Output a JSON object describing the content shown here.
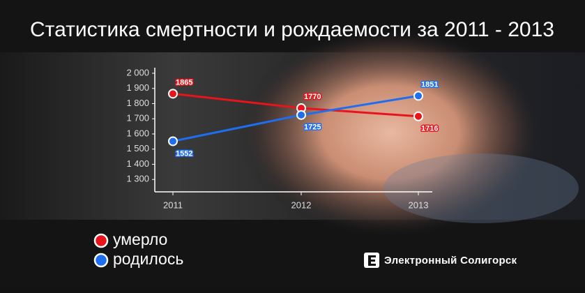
{
  "chart_data": {
    "type": "line",
    "title": "Статистика смертности и рождаемости за 2011 - 2013",
    "categories": [
      "2011",
      "2012",
      "2013"
    ],
    "series": [
      {
        "name": "умерло",
        "color": "#e8141c",
        "values": [
          1865,
          1770,
          1716
        ]
      },
      {
        "name": "родилось",
        "color": "#1e6ef0",
        "values": [
          1552,
          1725,
          1851
        ]
      }
    ],
    "ylim": [
      1200,
      2000
    ],
    "yticks": [
      {
        "value": 1300,
        "label": "1 300"
      },
      {
        "value": 1400,
        "label": "1 400"
      },
      {
        "value": 1500,
        "label": "1 500"
      },
      {
        "value": 1600,
        "label": "1 600"
      },
      {
        "value": 1700,
        "label": "1 700"
      },
      {
        "value": 1800,
        "label": "1 800"
      },
      {
        "value": 1900,
        "label": "1 900"
      },
      {
        "value": 2000,
        "label": "2 000"
      }
    ],
    "grid": false,
    "brand": "Электронный Солигорск"
  }
}
